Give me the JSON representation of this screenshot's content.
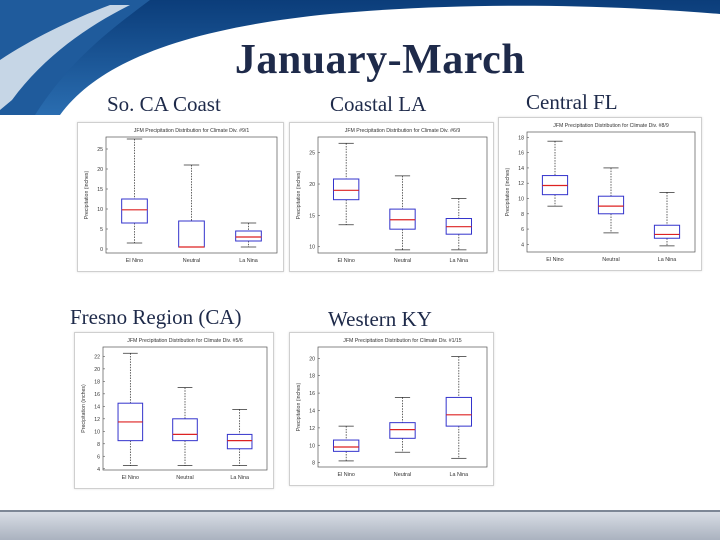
{
  "slide": {
    "title": "January-March"
  },
  "regions": [
    {
      "label": "So. CA Coast"
    },
    {
      "label": "Coastal LA"
    },
    {
      "label": "Central FL"
    },
    {
      "label": "Fresno Region (CA)"
    },
    {
      "label": "Western KY"
    }
  ],
  "colors": {
    "box": "#3333cc",
    "median": "#dd2222",
    "whisker": "#222222",
    "title": "#1e2a4a"
  },
  "chart_data": [
    {
      "type": "box",
      "title": "JFM Precipitation Distribution for Climate Div. #9/1",
      "ylabel": "Precipitation (inches)",
      "categories": [
        "El Nino",
        "Neutral",
        "La Nina"
      ],
      "yticks": [
        0,
        5,
        10,
        15,
        20,
        25
      ],
      "ylim": [
        -1,
        28
      ],
      "boxes": [
        {
          "min": 1.5,
          "q1": 6.5,
          "median": 9.8,
          "q3": 12.5,
          "max": 27.5
        },
        {
          "min": 0.5,
          "q1": 0.5,
          "median": 0.5,
          "q3": 7.0,
          "max": 21.0
        },
        {
          "min": 0.5,
          "q1": 2.0,
          "median": 3.0,
          "q3": 4.5,
          "max": 6.5
        }
      ]
    },
    {
      "type": "box",
      "title": "JFM Precipitation Distribution for Climate Div. #6/9",
      "ylabel": "Precipitation (inches)",
      "categories": [
        "El Nino",
        "Neutral",
        "La Nina"
      ],
      "yticks": [
        10,
        15,
        20,
        25
      ],
      "ylim": [
        9,
        27.5
      ],
      "boxes": [
        {
          "min": 13.5,
          "q1": 17.5,
          "median": 19.0,
          "q3": 20.8,
          "max": 26.5
        },
        {
          "min": 9.5,
          "q1": 12.8,
          "median": 14.3,
          "q3": 16.0,
          "max": 21.3
        },
        {
          "min": 9.5,
          "q1": 12.0,
          "median": 13.2,
          "q3": 14.5,
          "max": 17.7
        }
      ]
    },
    {
      "type": "box",
      "title": "JFM Precipitation Distribution for Climate Div. #8/9",
      "ylabel": "Precipitation (inches)",
      "categories": [
        "El Nino",
        "Neutral",
        "La Nina"
      ],
      "yticks": [
        4,
        6,
        8,
        10,
        12,
        14,
        16,
        18
      ],
      "ylim": [
        3,
        18.7
      ],
      "boxes": [
        {
          "min": 9.0,
          "q1": 10.5,
          "median": 11.7,
          "q3": 13.0,
          "max": 17.5
        },
        {
          "min": 5.5,
          "q1": 8.0,
          "median": 9.0,
          "q3": 10.3,
          "max": 14.0
        },
        {
          "min": 3.8,
          "q1": 4.8,
          "median": 5.3,
          "q3": 6.5,
          "max": 10.8
        }
      ]
    },
    {
      "type": "box",
      "title": "JFM Precipitation Distribution for Climate Div. #5/6",
      "ylabel": "Precipitation (inches)",
      "categories": [
        "El Nino",
        "Neutral",
        "La Nina"
      ],
      "yticks": [
        4,
        6,
        8,
        10,
        12,
        14,
        16,
        18,
        20,
        22
      ],
      "ylim": [
        3.8,
        23.5
      ],
      "boxes": [
        {
          "min": 4.5,
          "q1": 8.5,
          "median": 11.5,
          "q3": 14.5,
          "max": 22.5
        },
        {
          "min": 4.5,
          "q1": 8.5,
          "median": 9.5,
          "q3": 12.0,
          "max": 17.0
        },
        {
          "min": 4.5,
          "q1": 7.2,
          "median": 8.5,
          "q3": 9.5,
          "max": 13.5
        }
      ]
    },
    {
      "type": "box",
      "title": "JFM Precipitation Distribution for Climate Div. #1/15",
      "ylabel": "Precipitation (inches)",
      "categories": [
        "El Nino",
        "Neutral",
        "La Nina"
      ],
      "yticks": [
        8,
        10,
        12,
        14,
        16,
        18,
        20
      ],
      "ylim": [
        7.5,
        21.3
      ],
      "boxes": [
        {
          "min": 8.2,
          "q1": 9.3,
          "median": 9.8,
          "q3": 10.6,
          "max": 12.2
        },
        {
          "min": 9.2,
          "q1": 10.8,
          "median": 11.8,
          "q3": 12.6,
          "max": 15.5
        },
        {
          "min": 8.5,
          "q1": 12.2,
          "median": 13.5,
          "q3": 15.5,
          "max": 20.2
        }
      ]
    }
  ]
}
